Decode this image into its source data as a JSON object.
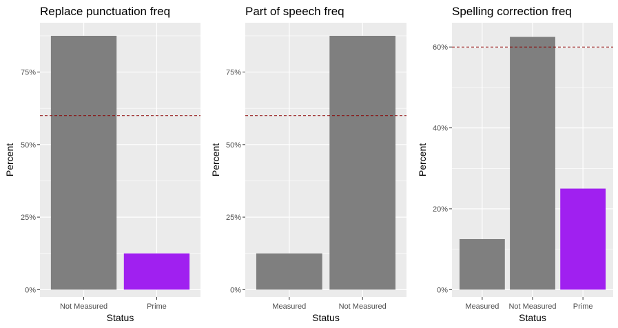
{
  "colors": {
    "panel_bg": "#ebebeb",
    "grid_major": "#ffffff",
    "bar_default": "#7f7f7f",
    "bar_highlight": "#a020f0",
    "threshold_line": "#8b0000"
  },
  "chart_data": [
    {
      "type": "bar",
      "title": "Replace punctuation freq",
      "xlabel": "Status",
      "ylabel": "Percent",
      "categories": [
        "Not Measured",
        "Prime"
      ],
      "values": [
        0.875,
        0.125
      ],
      "bar_colors": [
        "#7f7f7f",
        "#a020f0"
      ],
      "ylim": [
        0,
        0.92
      ],
      "yticks": [
        0,
        0.25,
        0.5,
        0.75
      ],
      "ytick_labels": [
        "0%",
        "25%",
        "50%",
        "75%"
      ],
      "threshold": 0.6,
      "grid": true
    },
    {
      "type": "bar",
      "title": "Part of speech freq",
      "xlabel": "Status",
      "ylabel": "Percent",
      "categories": [
        "Measured",
        "Not Measured"
      ],
      "values": [
        0.125,
        0.875
      ],
      "bar_colors": [
        "#7f7f7f",
        "#7f7f7f"
      ],
      "ylim": [
        0,
        0.92
      ],
      "yticks": [
        0,
        0.25,
        0.5,
        0.75
      ],
      "ytick_labels": [
        "0%",
        "25%",
        "50%",
        "75%"
      ],
      "threshold": 0.6,
      "grid": true
    },
    {
      "type": "bar",
      "title": "Spelling correction freq",
      "xlabel": "Status",
      "ylabel": "Percent",
      "categories": [
        "Measured",
        "Not Measured",
        "Prime"
      ],
      "values": [
        0.125,
        0.625,
        0.25
      ],
      "bar_colors": [
        "#7f7f7f",
        "#7f7f7f",
        "#a020f0"
      ],
      "ylim": [
        0,
        0.66
      ],
      "yticks": [
        0,
        0.2,
        0.4,
        0.6
      ],
      "ytick_labels": [
        "0%",
        "20%",
        "40%",
        "60%"
      ],
      "threshold": 0.6,
      "grid": true
    }
  ]
}
